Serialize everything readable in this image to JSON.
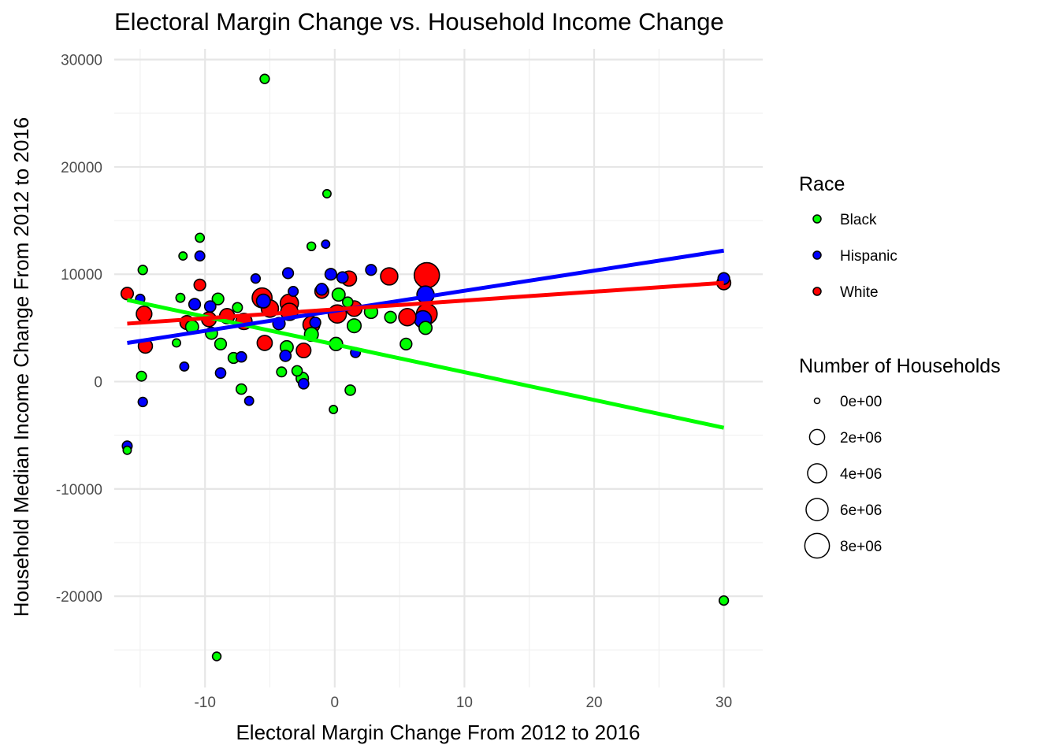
{
  "chart_data": {
    "type": "scatter",
    "title": "Electoral Margin Change vs. Household Income Change",
    "xlabel": "Electoral Margin Change From 2012 to 2016",
    "ylabel": "Household Median Income Change From 2012 to 2016",
    "xlim": [
      -17,
      33
    ],
    "ylim": [
      -28500,
      31000
    ],
    "x_ticks": [
      -10,
      0,
      10,
      20,
      30
    ],
    "x_tick_labels": [
      "-10",
      "0",
      "10",
      "20",
      "30"
    ],
    "y_ticks": [
      -20000,
      -10000,
      0,
      10000,
      20000,
      30000
    ],
    "y_tick_labels": [
      "-20000",
      "-10000",
      "0",
      "10000",
      "20000",
      "30000"
    ],
    "grid": true,
    "legend": {
      "placement": "right",
      "color_title": "Race",
      "size_title": "Number of Households",
      "size_breaks": [
        0,
        2000000,
        4000000,
        6000000,
        8000000
      ],
      "size_labels": [
        "0e+00",
        "2e+06",
        "4e+06",
        "6e+06",
        "8e+06"
      ]
    },
    "series": [
      {
        "name": "Black",
        "color": "#00ff00",
        "trend": {
          "x": [
            -16,
            30
          ],
          "y": [
            7600,
            -4300
          ]
        },
        "points": [
          {
            "x": -5.4,
            "y": 28200,
            "n": 300000
          },
          {
            "x": -0.6,
            "y": 17500,
            "n": 150000
          },
          {
            "x": -10.4,
            "y": 13400,
            "n": 250000
          },
          {
            "x": -1.8,
            "y": 12600,
            "n": 200000
          },
          {
            "x": -11.7,
            "y": 11700,
            "n": 150000
          },
          {
            "x": -14.8,
            "y": 10400,
            "n": 300000
          },
          {
            "x": -11.9,
            "y": 7800,
            "n": 250000
          },
          {
            "x": -9.0,
            "y": 7700,
            "n": 800000
          },
          {
            "x": -7.5,
            "y": 6900,
            "n": 400000
          },
          {
            "x": -11.0,
            "y": 5100,
            "n": 1200000
          },
          {
            "x": -9.5,
            "y": 4500,
            "n": 900000
          },
          {
            "x": -12.2,
            "y": 3600,
            "n": 150000
          },
          {
            "x": -8.8,
            "y": 3500,
            "n": 800000
          },
          {
            "x": -7.8,
            "y": 2200,
            "n": 600000
          },
          {
            "x": -3.7,
            "y": 3200,
            "n": 1200000
          },
          {
            "x": -1.8,
            "y": 4400,
            "n": 1500000
          },
          {
            "x": 0.3,
            "y": 8100,
            "n": 1200000
          },
          {
            "x": 1.0,
            "y": 7400,
            "n": 500000
          },
          {
            "x": 1.5,
            "y": 5200,
            "n": 1500000
          },
          {
            "x": 2.8,
            "y": 6500,
            "n": 1300000
          },
          {
            "x": 4.3,
            "y": 6000,
            "n": 800000
          },
          {
            "x": 5.5,
            "y": 3500,
            "n": 800000
          },
          {
            "x": 7.0,
            "y": 5000,
            "n": 1200000
          },
          {
            "x": 0.1,
            "y": 3500,
            "n": 1300000
          },
          {
            "x": -2.5,
            "y": 300,
            "n": 1000000
          },
          {
            "x": -2.9,
            "y": 1000,
            "n": 500000
          },
          {
            "x": -4.1,
            "y": 900,
            "n": 400000
          },
          {
            "x": -7.2,
            "y": -700,
            "n": 500000
          },
          {
            "x": -14.9,
            "y": 500,
            "n": 400000
          },
          {
            "x": 1.2,
            "y": -800,
            "n": 500000
          },
          {
            "x": -0.1,
            "y": -2600,
            "n": 150000
          },
          {
            "x": -16.0,
            "y": -6400,
            "n": 150000
          },
          {
            "x": -9.1,
            "y": -25600,
            "n": 200000
          },
          {
            "x": 30.0,
            "y": -20400,
            "n": 300000
          }
        ]
      },
      {
        "name": "Hispanic",
        "color": "#0000ff",
        "trend": {
          "x": [
            -16,
            30
          ],
          "y": [
            3600,
            12200
          ]
        },
        "points": [
          {
            "x": -0.7,
            "y": 12800,
            "n": 150000
          },
          {
            "x": -10.4,
            "y": 11700,
            "n": 400000
          },
          {
            "x": 2.8,
            "y": 10400,
            "n": 600000
          },
          {
            "x": -3.6,
            "y": 10100,
            "n": 600000
          },
          {
            "x": -0.3,
            "y": 10000,
            "n": 800000
          },
          {
            "x": 0.6,
            "y": 9700,
            "n": 700000
          },
          {
            "x": -6.1,
            "y": 9600,
            "n": 300000
          },
          {
            "x": 30.0,
            "y": 9600,
            "n": 800000
          },
          {
            "x": -3.2,
            "y": 8400,
            "n": 400000
          },
          {
            "x": -15.0,
            "y": 7700,
            "n": 300000
          },
          {
            "x": -10.8,
            "y": 7200,
            "n": 800000
          },
          {
            "x": -9.6,
            "y": 7000,
            "n": 700000
          },
          {
            "x": -5.5,
            "y": 7500,
            "n": 1500000
          },
          {
            "x": -1.0,
            "y": 8600,
            "n": 800000
          },
          {
            "x": 7.0,
            "y": 8100,
            "n": 3000000
          },
          {
            "x": 6.8,
            "y": 5800,
            "n": 3000000
          },
          {
            "x": -4.3,
            "y": 5400,
            "n": 1000000
          },
          {
            "x": -1.5,
            "y": 5500,
            "n": 600000
          },
          {
            "x": 1.6,
            "y": 2700,
            "n": 400000
          },
          {
            "x": -3.8,
            "y": 2400,
            "n": 700000
          },
          {
            "x": -7.2,
            "y": 2300,
            "n": 500000
          },
          {
            "x": -11.6,
            "y": 1400,
            "n": 250000
          },
          {
            "x": -8.8,
            "y": 800,
            "n": 500000
          },
          {
            "x": -2.4,
            "y": -200,
            "n": 500000
          },
          {
            "x": -6.6,
            "y": -1800,
            "n": 250000
          },
          {
            "x": -14.8,
            "y": -1900,
            "n": 300000
          },
          {
            "x": -16.0,
            "y": -6000,
            "n": 400000
          }
        ]
      },
      {
        "name": "White",
        "color": "#ff0000",
        "trend": {
          "x": [
            -16,
            30
          ],
          "y": [
            5400,
            9200
          ]
        },
        "points": [
          {
            "x": -16.0,
            "y": 8200,
            "n": 1000000
          },
          {
            "x": -14.7,
            "y": 6300,
            "n": 2200000
          },
          {
            "x": -14.6,
            "y": 3300,
            "n": 1600000
          },
          {
            "x": -10.4,
            "y": 9000,
            "n": 800000
          },
          {
            "x": -11.4,
            "y": 5500,
            "n": 1500000
          },
          {
            "x": -9.7,
            "y": 5800,
            "n": 1800000
          },
          {
            "x": -8.3,
            "y": 6100,
            "n": 2000000
          },
          {
            "x": -7.0,
            "y": 5600,
            "n": 2500000
          },
          {
            "x": -5.6,
            "y": 7800,
            "n": 4500000
          },
          {
            "x": -5.0,
            "y": 6800,
            "n": 3000000
          },
          {
            "x": -5.4,
            "y": 3600,
            "n": 2000000
          },
          {
            "x": -3.5,
            "y": 7300,
            "n": 3500000
          },
          {
            "x": -3.5,
            "y": 6500,
            "n": 3000000
          },
          {
            "x": -2.4,
            "y": 2900,
            "n": 1800000
          },
          {
            "x": -1.8,
            "y": 5300,
            "n": 2800000
          },
          {
            "x": -1.0,
            "y": 8400,
            "n": 1500000
          },
          {
            "x": 0.2,
            "y": 6300,
            "n": 3500000
          },
          {
            "x": 1.1,
            "y": 9600,
            "n": 2000000
          },
          {
            "x": 1.5,
            "y": 6800,
            "n": 2200000
          },
          {
            "x": 4.2,
            "y": 9800,
            "n": 3000000
          },
          {
            "x": 5.6,
            "y": 6000,
            "n": 3000000
          },
          {
            "x": 7.1,
            "y": 9900,
            "n": 8500000
          },
          {
            "x": 7.1,
            "y": 6300,
            "n": 5000000
          },
          {
            "x": 30.0,
            "y": 9200,
            "n": 1500000
          }
        ]
      }
    ]
  }
}
